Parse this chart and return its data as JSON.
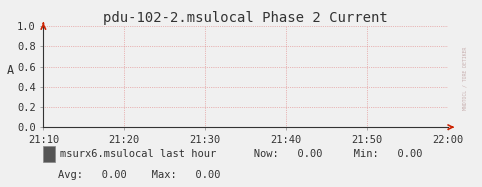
{
  "title": "pdu-102-2.msulocal Phase 2 Current",
  "ylabel": "A",
  "bg_color": "#f0f0f0",
  "plot_bg_color": "#f0f0f0",
  "grid_color": "#e08080",
  "axis_color": "#333333",
  "arrow_color": "#cc2200",
  "ylim": [
    0.0,
    1.0
  ],
  "yticks": [
    0.0,
    0.2,
    0.4,
    0.6,
    0.8,
    1.0
  ],
  "xtick_labels": [
    "21:10",
    "21:20",
    "21:30",
    "21:40",
    "21:50",
    "22:00"
  ],
  "legend_label": "msurx6.msulocal last hour",
  "legend_box_color": "#555555",
  "stats_now": "0.00",
  "stats_min": "0.00",
  "stats_avg": "0.00",
  "stats_max": "0.00",
  "font_family": "monospace",
  "title_fontsize": 10,
  "tick_fontsize": 7.5,
  "legend_fontsize": 7.5,
  "right_text": "MNDTOCL / TORE DETIKER"
}
